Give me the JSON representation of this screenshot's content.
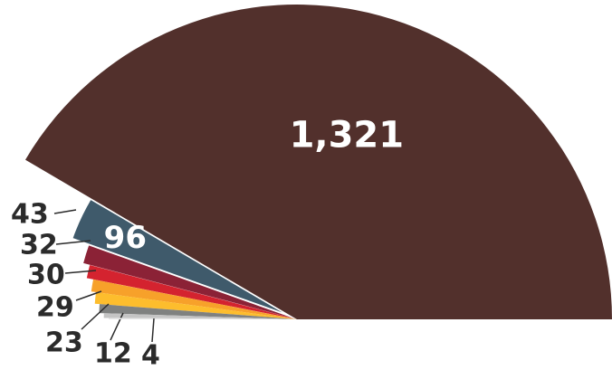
{
  "chart_data": {
    "type": "pie",
    "variant": "semicircle",
    "slices": [
      {
        "label": "1,321",
        "value": 1321,
        "color": "#52302c"
      },
      {
        "label": "96",
        "value": 96,
        "color": "#3f5a6b"
      },
      {
        "label": "43",
        "value": 43,
        "color": "#8b2236"
      },
      {
        "label": "32",
        "value": 32,
        "color": "#d4232f"
      },
      {
        "label": "30",
        "value": 30,
        "color": "#f7a12a"
      },
      {
        "label": "29",
        "value": 29,
        "color": "#fdbd2d"
      },
      {
        "label": "23",
        "value": 23,
        "color": "#7f8180"
      },
      {
        "label": "12",
        "value": 12,
        "color": "#c4c4c4"
      },
      {
        "label": "4",
        "value": 4,
        "color": "#e6e6e6"
      }
    ]
  }
}
